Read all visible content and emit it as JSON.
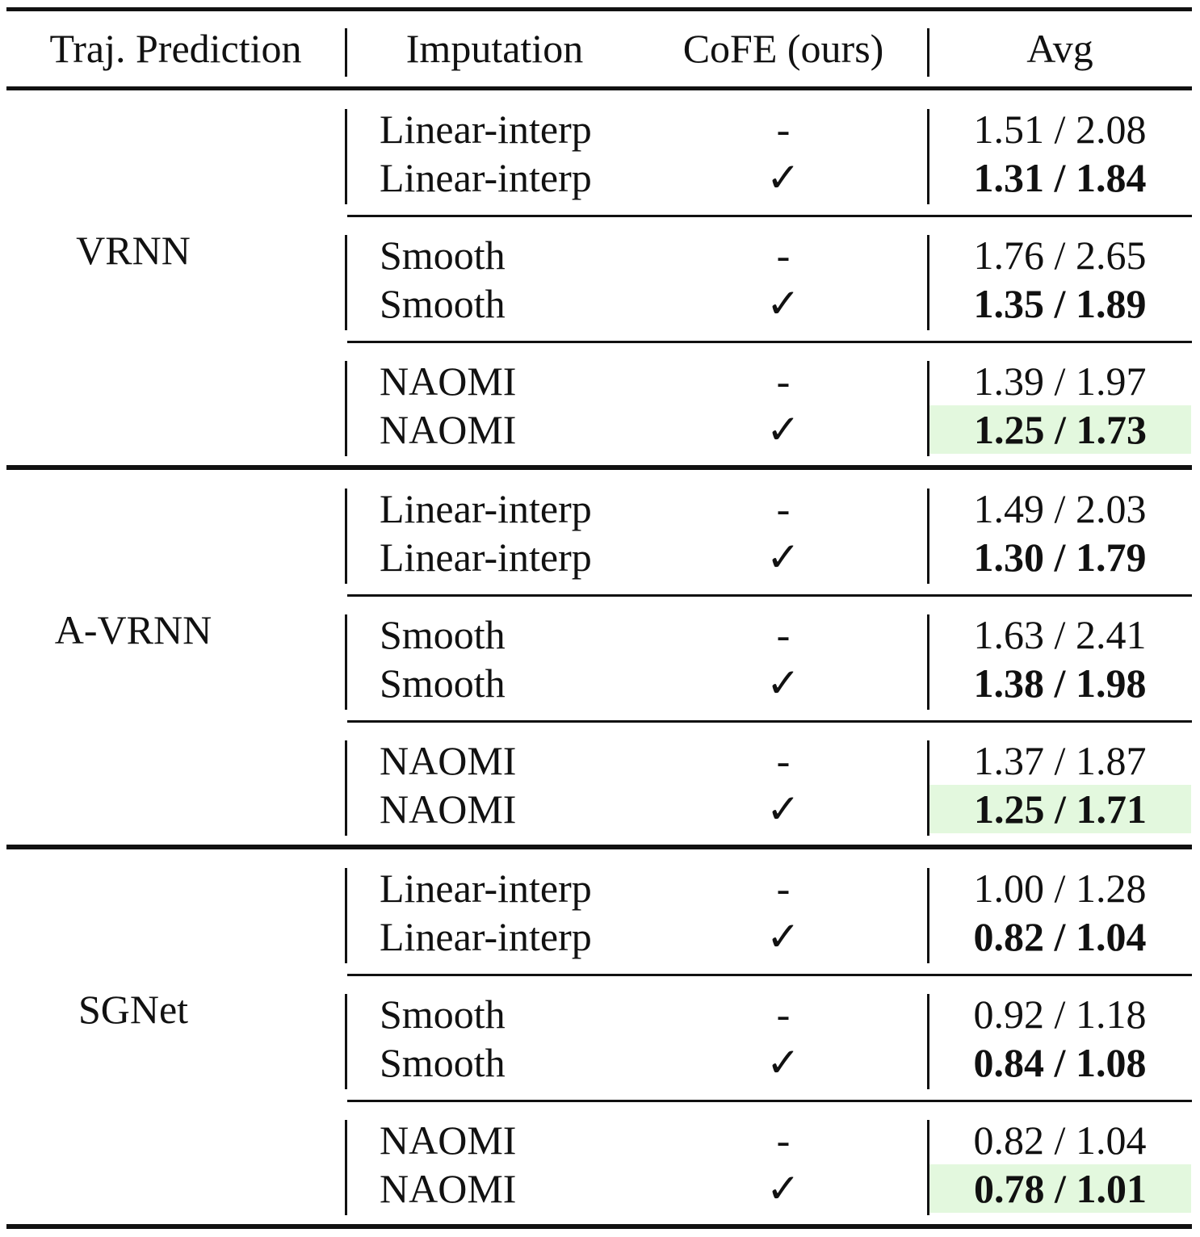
{
  "header": {
    "traj_prediction": "Traj. Prediction",
    "imputation": "Imputation",
    "cofe": "CoFE (ours)",
    "avg": "Avg"
  },
  "groups": [
    {
      "model": "VRNN",
      "pairs": [
        {
          "rows": [
            {
              "imputation": "Linear-interp",
              "cofe": "-",
              "avg": "1.51 / 2.08",
              "bold": false,
              "best": false
            },
            {
              "imputation": "Linear-interp",
              "cofe": "✓",
              "avg": "1.31 / 1.84",
              "bold": true,
              "best": false
            }
          ]
        },
        {
          "rows": [
            {
              "imputation": "Smooth",
              "cofe": "-",
              "avg": "1.76 / 2.65",
              "bold": false,
              "best": false
            },
            {
              "imputation": "Smooth",
              "cofe": "✓",
              "avg": "1.35 / 1.89",
              "bold": true,
              "best": false
            }
          ]
        },
        {
          "rows": [
            {
              "imputation": "NAOMI",
              "cofe": "-",
              "avg": "1.39 / 1.97",
              "bold": false,
              "best": false
            },
            {
              "imputation": "NAOMI",
              "cofe": "✓",
              "avg": "1.25 / 1.73",
              "bold": true,
              "best": true
            }
          ]
        }
      ]
    },
    {
      "model": "A-VRNN",
      "pairs": [
        {
          "rows": [
            {
              "imputation": "Linear-interp",
              "cofe": "-",
              "avg": "1.49 / 2.03",
              "bold": false,
              "best": false
            },
            {
              "imputation": "Linear-interp",
              "cofe": "✓",
              "avg": "1.30 / 1.79",
              "bold": true,
              "best": false
            }
          ]
        },
        {
          "rows": [
            {
              "imputation": "Smooth",
              "cofe": "-",
              "avg": "1.63 / 2.41",
              "bold": false,
              "best": false
            },
            {
              "imputation": "Smooth",
              "cofe": "✓",
              "avg": "1.38 / 1.98",
              "bold": true,
              "best": false
            }
          ]
        },
        {
          "rows": [
            {
              "imputation": "NAOMI",
              "cofe": "-",
              "avg": "1.37 / 1.87",
              "bold": false,
              "best": false
            },
            {
              "imputation": "NAOMI",
              "cofe": "✓",
              "avg": "1.25 / 1.71",
              "bold": true,
              "best": true
            }
          ]
        }
      ]
    },
    {
      "model": "SGNet",
      "pairs": [
        {
          "rows": [
            {
              "imputation": "Linear-interp",
              "cofe": "-",
              "avg": "1.00 / 1.28",
              "bold": false,
              "best": false
            },
            {
              "imputation": "Linear-interp",
              "cofe": "✓",
              "avg": "0.82 / 1.04",
              "bold": true,
              "best": false
            }
          ]
        },
        {
          "rows": [
            {
              "imputation": "Smooth",
              "cofe": "-",
              "avg": "0.92 / 1.18",
              "bold": false,
              "best": false
            },
            {
              "imputation": "Smooth",
              "cofe": "✓",
              "avg": "0.84 / 1.08",
              "bold": true,
              "best": false
            }
          ]
        },
        {
          "rows": [
            {
              "imputation": "NAOMI",
              "cofe": "-",
              "avg": "0.82 / 1.04",
              "bold": false,
              "best": false
            },
            {
              "imputation": "NAOMI",
              "cofe": "✓",
              "avg": "0.78 / 1.01",
              "bold": true,
              "best": true
            }
          ]
        }
      ]
    }
  ],
  "colors": {
    "rule": "#111111",
    "best_highlight": "#e3f8de"
  }
}
